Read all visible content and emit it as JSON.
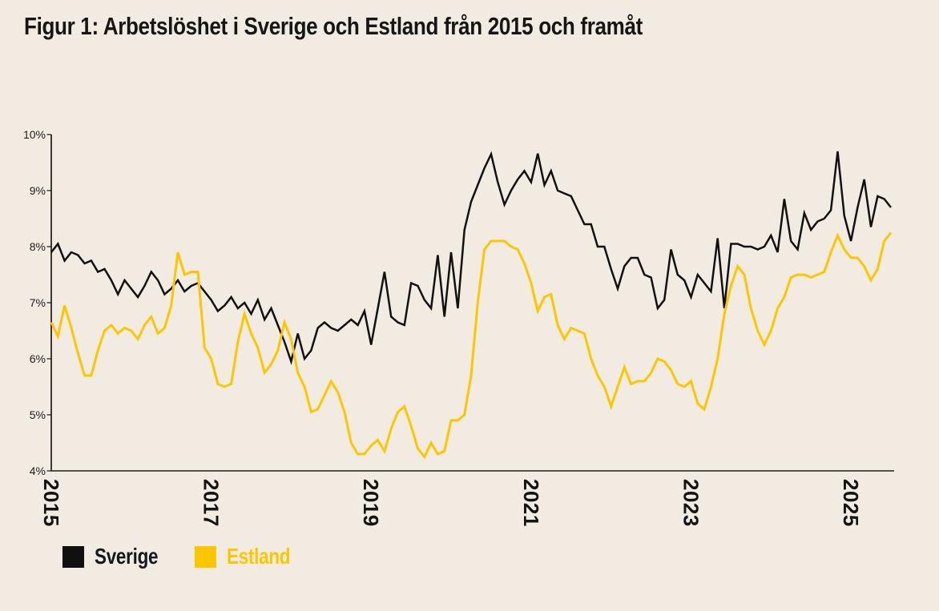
{
  "figure": {
    "title": "Figur 1: Arbetslöshet i Sverige och Estland från 2015 och framåt"
  },
  "colors": {
    "background": "#F2EBE2",
    "axis": "#1A1A1A",
    "x_axis_line": "#3C3C3C",
    "tick_text": "#1C1C1C",
    "sverige": "#101010",
    "estland": "#FEC601"
  },
  "legend": {
    "position": "bottom-left",
    "items": [
      {
        "label": "Sverige",
        "color": "#101010",
        "text_color": "#14181C"
      },
      {
        "label": "Estland",
        "color": "#FEC601",
        "text_color": "#FEC601"
      }
    ]
  },
  "chart_data": {
    "type": "line",
    "title": "Figur 1: Arbetslöshet i Sverige och Estland från 2015 och framåt",
    "xlabel": "",
    "ylabel": "",
    "x_unit": "month",
    "x_start": "2015-01",
    "x_end": "2025-07",
    "ylim": [
      4,
      10
    ],
    "grid": false,
    "yticks": [
      {
        "value": 10,
        "label": "10%"
      },
      {
        "value": 9,
        "label": "9%"
      },
      {
        "value": 8,
        "label": "8%"
      },
      {
        "value": 7,
        "label": "7%"
      },
      {
        "value": 6,
        "label": "6%"
      },
      {
        "value": 5,
        "label": "5%"
      },
      {
        "value": 4,
        "label": "4%"
      }
    ],
    "xticks": [
      {
        "month_index": 0,
        "label": "2015"
      },
      {
        "month_index": 24,
        "label": "2017"
      },
      {
        "month_index": 48,
        "label": "2019"
      },
      {
        "month_index": 72,
        "label": "2021"
      },
      {
        "month_index": 96,
        "label": "2023"
      },
      {
        "month_index": 120,
        "label": "2025"
      }
    ],
    "series": [
      {
        "name": "Sverige",
        "color": "#101010",
        "values": [
          7.9,
          8.05,
          7.75,
          7.9,
          7.85,
          7.7,
          7.75,
          7.55,
          7.6,
          7.4,
          7.15,
          7.4,
          7.25,
          7.1,
          7.3,
          7.55,
          7.4,
          7.15,
          7.25,
          7.4,
          7.2,
          7.3,
          7.35,
          7.2,
          7.05,
          6.85,
          6.95,
          7.1,
          6.9,
          7.0,
          6.8,
          7.05,
          6.7,
          6.9,
          6.6,
          6.3,
          5.95,
          6.45,
          6.0,
          6.15,
          6.55,
          6.65,
          6.55,
          6.5,
          6.6,
          6.7,
          6.6,
          6.85,
          6.25,
          6.9,
          7.55,
          6.75,
          6.65,
          6.6,
          7.35,
          7.3,
          7.05,
          6.9,
          7.85,
          6.75,
          7.9,
          6.9,
          8.3,
          8.8,
          9.1,
          9.4,
          9.65,
          9.15,
          8.75,
          9.0,
          9.2,
          9.35,
          9.15,
          9.66,
          9.1,
          9.35,
          9.0,
          8.95,
          8.9,
          8.65,
          8.4,
          8.4,
          8.0,
          8.0,
          7.6,
          7.25,
          7.65,
          7.8,
          7.8,
          7.5,
          7.45,
          6.9,
          7.05,
          7.95,
          7.5,
          7.4,
          7.1,
          7.5,
          7.35,
          7.2,
          8.15,
          6.9,
          8.05,
          8.05,
          8.0,
          8.0,
          7.95,
          8.0,
          8.2,
          7.9,
          8.85,
          8.1,
          7.95,
          8.6,
          8.3,
          8.45,
          8.5,
          8.65,
          9.7,
          8.55,
          8.1,
          8.7,
          9.2,
          8.35,
          8.9,
          8.85,
          8.7
        ]
      },
      {
        "name": "Estland",
        "color": "#FEC601",
        "values": [
          6.65,
          6.4,
          6.95,
          6.55,
          6.1,
          5.7,
          5.7,
          6.15,
          6.5,
          6.6,
          6.45,
          6.55,
          6.5,
          6.35,
          6.6,
          6.75,
          6.45,
          6.55,
          6.95,
          7.9,
          7.5,
          7.55,
          7.55,
          6.2,
          6.0,
          5.55,
          5.5,
          5.55,
          6.3,
          6.8,
          6.45,
          6.2,
          5.75,
          5.9,
          6.15,
          6.65,
          6.35,
          5.75,
          5.5,
          5.05,
          5.1,
          5.35,
          5.6,
          5.4,
          5.05,
          4.5,
          4.3,
          4.3,
          4.45,
          4.55,
          4.35,
          4.75,
          5.05,
          5.15,
          4.8,
          4.4,
          4.25,
          4.5,
          4.3,
          4.35,
          4.9,
          4.9,
          5.0,
          5.7,
          7.0,
          7.95,
          8.1,
          8.1,
          8.1,
          8.0,
          7.95,
          7.7,
          7.35,
          6.85,
          7.1,
          7.15,
          6.6,
          6.35,
          6.55,
          6.5,
          6.45,
          6.0,
          5.7,
          5.5,
          5.15,
          5.5,
          5.85,
          5.55,
          5.6,
          5.6,
          5.75,
          6.0,
          5.95,
          5.8,
          5.55,
          5.5,
          5.6,
          5.2,
          5.1,
          5.5,
          6.0,
          6.8,
          7.3,
          7.65,
          7.5,
          6.9,
          6.5,
          6.25,
          6.5,
          6.9,
          7.1,
          7.45,
          7.5,
          7.5,
          7.45,
          7.5,
          7.55,
          7.9,
          8.2,
          7.95,
          7.8,
          7.8,
          7.65,
          7.4,
          7.6,
          8.1,
          8.25
        ]
      }
    ]
  }
}
